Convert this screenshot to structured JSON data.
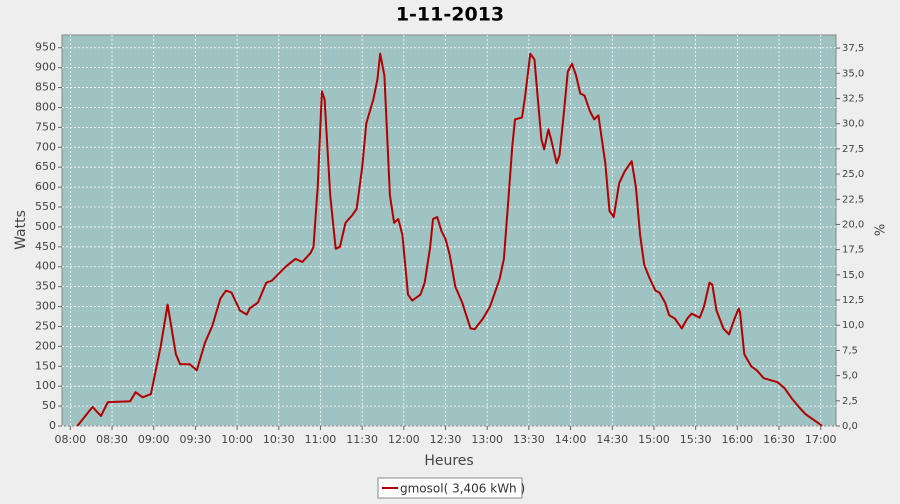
{
  "chart_data": {
    "type": "line",
    "title": "1-11-2013",
    "x_label": "Heures",
    "y_label": "Watts",
    "y2_label": "%",
    "x": [
      485,
      496,
      502,
      507,
      523,
      527,
      532,
      538,
      545,
      550,
      556,
      559,
      566,
      571,
      577,
      582,
      588,
      592,
      596,
      602,
      607,
      609,
      615,
      621,
      625,
      635,
      642,
      647,
      653,
      655,
      658,
      661,
      663,
      667,
      671,
      674,
      678,
      683,
      686,
      690,
      693,
      698,
      701,
      703,
      706,
      710,
      713,
      716,
      719,
      723,
      726,
      732,
      735,
      739,
      741,
      744,
      747,
      750,
      753,
      757,
      762,
      768,
      771,
      777,
      782,
      786,
      789,
      792,
      795,
      798,
      800,
      805,
      807,
      811,
      814,
      816,
      819,
      821,
      824,
      826,
      830,
      832,
      835,
      838,
      841,
      844,
      847,
      850,
      854,
      857,
      860,
      865,
      868,
      871,
      875,
      879,
      884,
      887,
      890,
      893,
      897,
      901,
      904,
      908,
      911,
      915,
      920,
      924,
      927,
      933,
      936,
      940,
      942,
      945,
      950,
      954,
      958,
      961,
      962,
      965,
      970,
      974,
      979,
      984,
      989,
      994,
      999,
      1005,
      1009,
      1013,
      1018,
      1021
    ],
    "series": [
      {
        "name": "gmosol( 3,406 kWh )",
        "color": "#b30000",
        "values": [
          0,
          48,
          25,
          60,
          62,
          85,
          72,
          80,
          200,
          305,
          180,
          155,
          155,
          140,
          210,
          250,
          320,
          340,
          335,
          290,
          280,
          295,
          310,
          360,
          365,
          400,
          420,
          412,
          435,
          450,
          600,
          840,
          820,
          580,
          445,
          450,
          510,
          530,
          545,
          650,
          760,
          820,
          870,
          935,
          880,
          580,
          510,
          520,
          480,
          330,
          315,
          330,
          360,
          450,
          520,
          525,
          490,
          470,
          430,
          350,
          310,
          245,
          243,
          270,
          300,
          340,
          370,
          420,
          560,
          700,
          770,
          775,
          820,
          935,
          920,
          840,
          720,
          695,
          745,
          720,
          660,
          680,
          780,
          890,
          910,
          880,
          835,
          830,
          790,
          770,
          780,
          660,
          540,
          525,
          610,
          640,
          665,
          600,
          480,
          405,
          370,
          340,
          335,
          310,
          278,
          270,
          245,
          270,
          282,
          272,
          300,
          360,
          355,
          290,
          245,
          230,
          270,
          295,
          285,
          180,
          150,
          140,
          120,
          115,
          110,
          95,
          70,
          45,
          30,
          20,
          8,
          0
        ]
      }
    ],
    "xlim": [
      474,
      1031
    ],
    "xticks": [
      {
        "value": 480,
        "label": "08:00"
      },
      {
        "value": 510,
        "label": "08:30"
      },
      {
        "value": 540,
        "label": "09:00"
      },
      {
        "value": 570,
        "label": "09:30"
      },
      {
        "value": 600,
        "label": "10:00"
      },
      {
        "value": 630,
        "label": "10:30"
      },
      {
        "value": 660,
        "label": "11:00"
      },
      {
        "value": 690,
        "label": "11:30"
      },
      {
        "value": 720,
        "label": "12:00"
      },
      {
        "value": 750,
        "label": "12:30"
      },
      {
        "value": 780,
        "label": "13:00"
      },
      {
        "value": 810,
        "label": "13:30"
      },
      {
        "value": 840,
        "label": "14:00"
      },
      {
        "value": 870,
        "label": "14:30"
      },
      {
        "value": 900,
        "label": "15:00"
      },
      {
        "value": 930,
        "label": "15:30"
      },
      {
        "value": 960,
        "label": "16:00"
      },
      {
        "value": 990,
        "label": "16:30"
      },
      {
        "value": 1020,
        "label": "17:00"
      }
    ],
    "ylim": [
      0,
      982
    ],
    "yticks": [
      0,
      50,
      100,
      150,
      200,
      250,
      300,
      350,
      400,
      450,
      500,
      550,
      600,
      650,
      700,
      750,
      800,
      850,
      900,
      950
    ],
    "y2lim": [
      0,
      38.8
    ],
    "y2ticks": [
      {
        "value": 0,
        "label": "0,0"
      },
      {
        "value": 2.5,
        "label": "2,5"
      },
      {
        "value": 5,
        "label": "5,0"
      },
      {
        "value": 7.5,
        "label": "7,5"
      },
      {
        "value": 10,
        "label": "10,0"
      },
      {
        "value": 12.5,
        "label": "12,5"
      },
      {
        "value": 15,
        "label": "15,0"
      },
      {
        "value": 17.5,
        "label": "17,5"
      },
      {
        "value": 20,
        "label": "20,0"
      },
      {
        "value": 22.5,
        "label": "22,5"
      },
      {
        "value": 25,
        "label": "25,0"
      },
      {
        "value": 27.5,
        "label": "27,5"
      },
      {
        "value": 30,
        "label": "30,0"
      },
      {
        "value": 32.5,
        "label": "32,5"
      },
      {
        "value": 35,
        "label": "35,0"
      },
      {
        "value": 37.5,
        "label": "37,5"
      }
    ],
    "grid": true
  }
}
